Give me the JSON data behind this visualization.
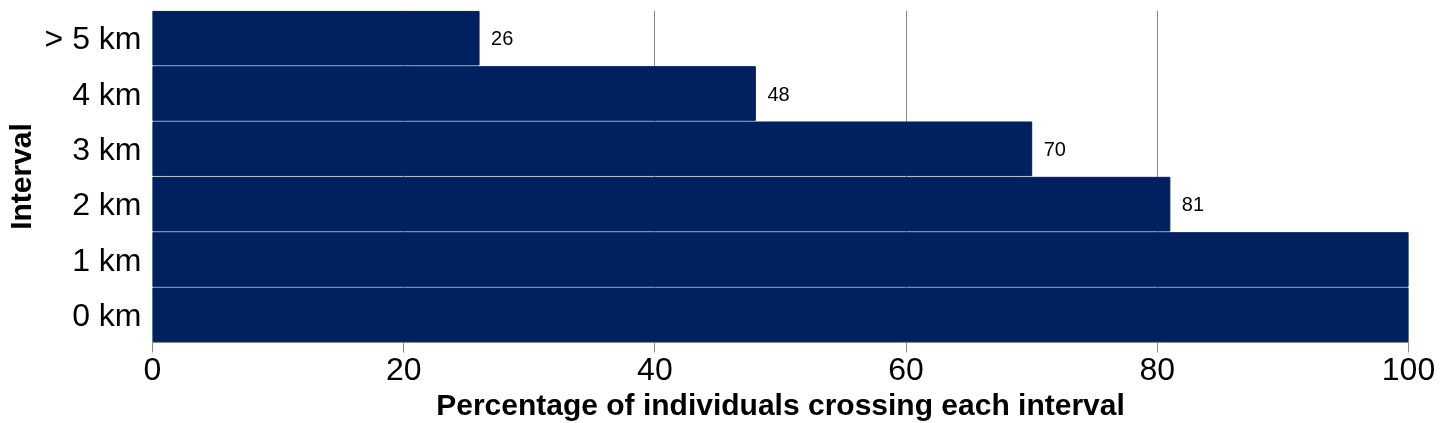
{
  "chart_data": {
    "type": "bar",
    "orientation": "horizontal",
    "xlabel": "Percentage of individuals crossing each interval",
    "ylabel": "Interval",
    "categories": [
      "> 5 km",
      "4 km",
      "3 km",
      "2 km",
      "1 km",
      "0 km"
    ],
    "values": [
      26,
      48,
      70,
      81,
      100,
      100
    ],
    "value_labels": [
      "26",
      "48",
      "70",
      "81",
      null,
      null
    ],
    "color": "#002060",
    "xlim": [
      0,
      100
    ],
    "xticks": [
      0,
      20,
      40,
      60,
      80,
      100
    ],
    "grid": "x"
  }
}
